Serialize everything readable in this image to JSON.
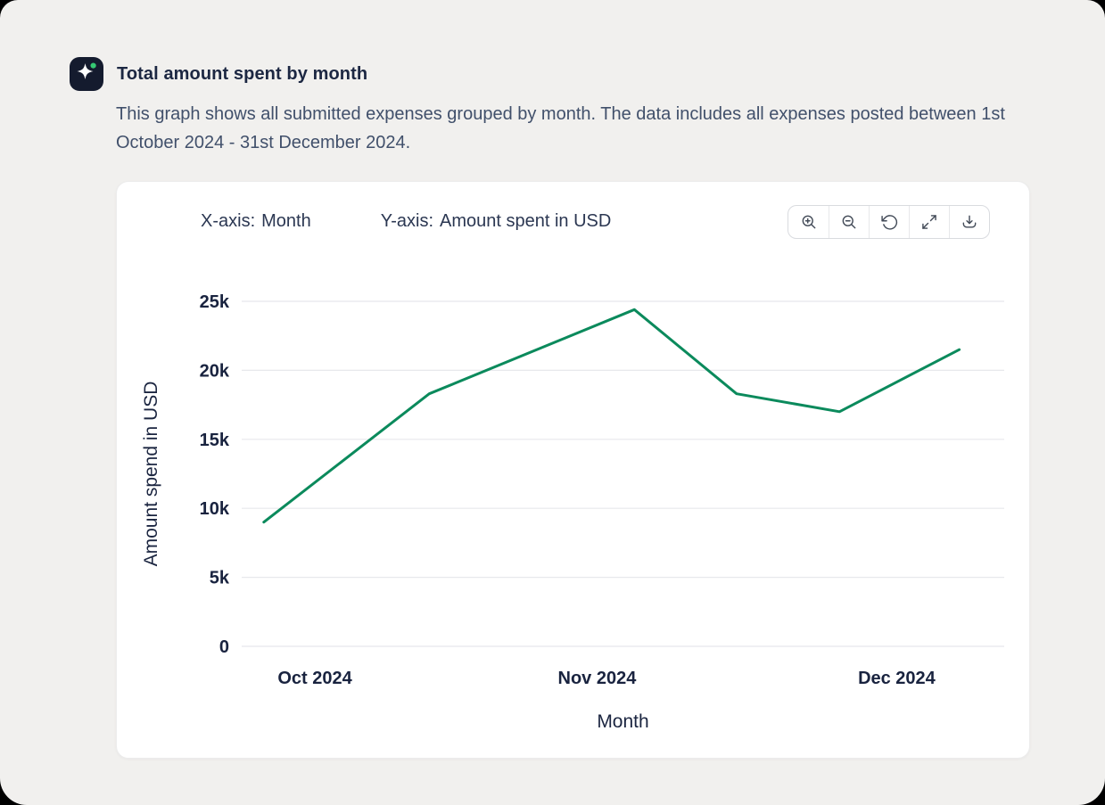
{
  "colors": {
    "background": "#f1f0ee",
    "card": "#ffffff",
    "accent_green": "#0b8a5c",
    "app_icon_bg": "#141b2e",
    "app_icon_dot": "#35c873",
    "text_dark": "#1b2540",
    "text_slate": "#41506b"
  },
  "header": {
    "title": "Total amount spent by month",
    "description": "This graph shows all submitted expenses grouped by month. The data includes all expenses posted between 1st October 2024 - 31st December 2024."
  },
  "card": {
    "x_axis_key": "X-axis:",
    "x_axis_value": "Month",
    "y_axis_key": "Y-axis:",
    "y_axis_value": "Amount spent in USD",
    "toolbar": {
      "buttons": [
        {
          "icon": "zoom-in-icon"
        },
        {
          "icon": "zoom-out-icon"
        },
        {
          "icon": "reset-icon"
        },
        {
          "icon": "fullscreen-icon"
        },
        {
          "icon": "download-icon"
        }
      ]
    }
  },
  "chart_data": {
    "type": "line",
    "title": "Total amount spent by month",
    "xlabel": "Month",
    "ylabel": "Amount spend in USD",
    "ylim": [
      0,
      25000
    ],
    "grid": true,
    "legend": "none",
    "y_ticks": [
      {
        "value": 0,
        "label": "0"
      },
      {
        "value": 5000,
        "label": "5k"
      },
      {
        "value": 10000,
        "label": "10k"
      },
      {
        "value": 15000,
        "label": "15k"
      },
      {
        "value": 20000,
        "label": "20k"
      },
      {
        "value": 25000,
        "label": "25k"
      }
    ],
    "x_ticks": [
      {
        "pos": 0.096,
        "label": "Oct 2024"
      },
      {
        "pos": 0.466,
        "label": "Nov 2024"
      },
      {
        "pos": 0.859,
        "label": "Dec 2024"
      }
    ],
    "series": [
      {
        "name": "Total amount spent",
        "color": "#0b8a5c",
        "points": [
          {
            "pos": 0.029,
            "value": 9000
          },
          {
            "pos": 0.246,
            "value": 18300
          },
          {
            "pos": 0.515,
            "value": 24400
          },
          {
            "pos": 0.649,
            "value": 18300
          },
          {
            "pos": 0.784,
            "value": 17000
          },
          {
            "pos": 0.941,
            "value": 21500
          }
        ]
      }
    ]
  }
}
